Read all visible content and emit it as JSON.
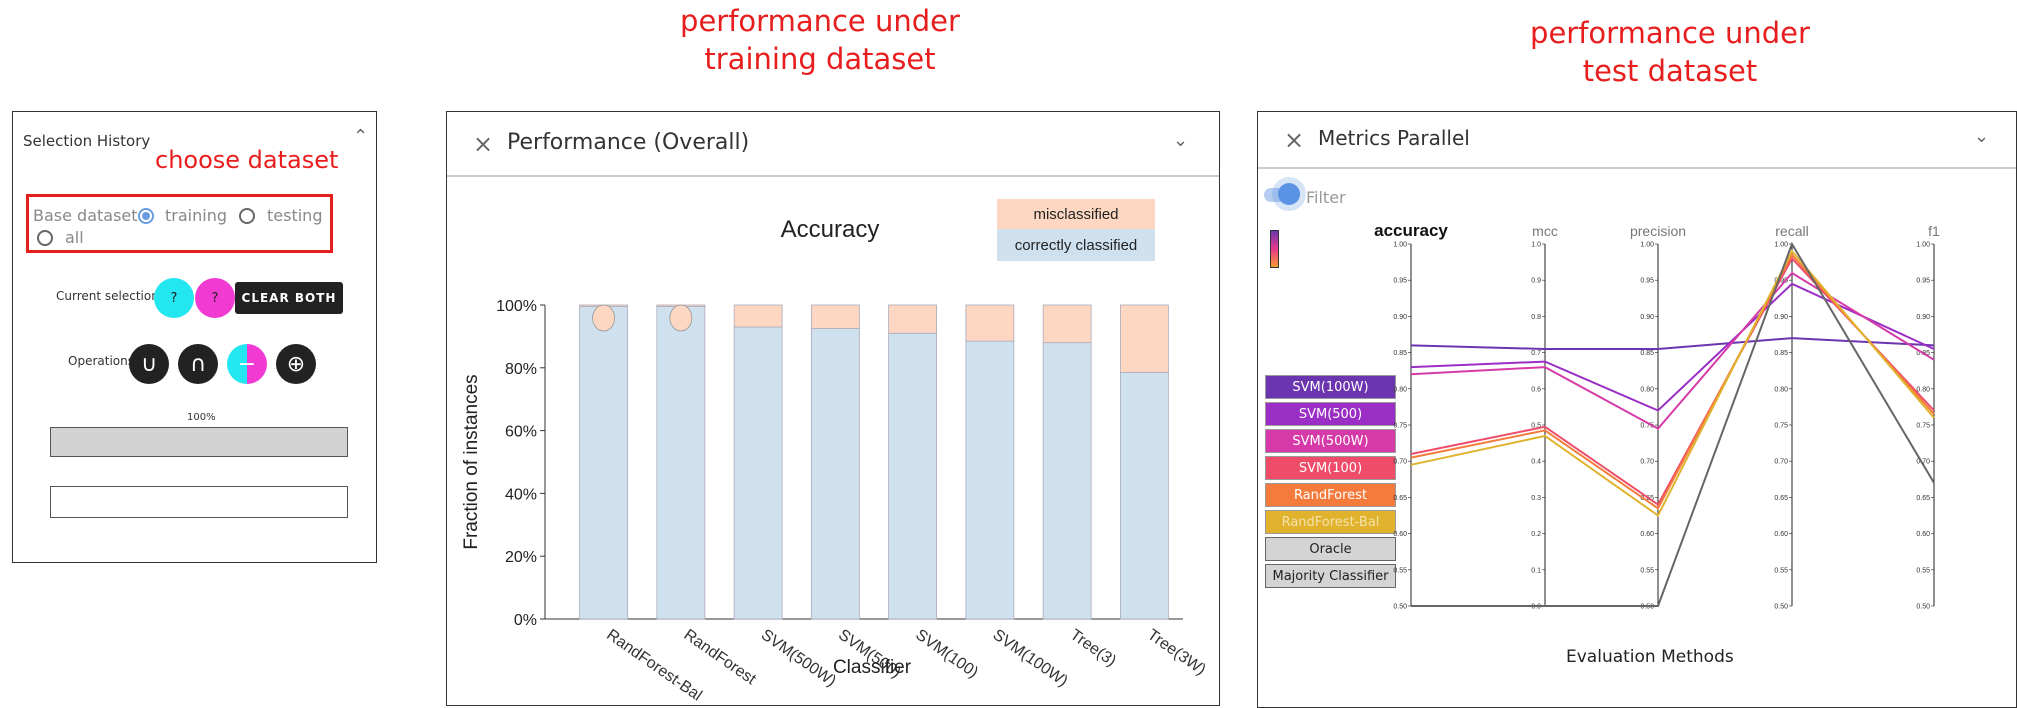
{
  "captions": {
    "training": "performance under\ntraining dataset",
    "test": "performance under\ntest dataset",
    "choose": "choose dataset"
  },
  "selection_history": {
    "title": "Selection History",
    "base_dataset_label": "Base dataset",
    "options": [
      "training",
      "testing",
      "all"
    ],
    "selected": "training",
    "current_selections_label": "Current selections",
    "sel_a": "?",
    "sel_b": "?",
    "clear_both": "CLEAR BOTH",
    "operations_label": "Operations",
    "operations": [
      "∪",
      "∩",
      "−",
      "⊕"
    ],
    "progress_label": "100%",
    "progress": 1.0
  },
  "performance": {
    "title": "Performance (Overall)",
    "close_icon": "×",
    "chevron_icon": "⌄",
    "chart_title": "Accuracy",
    "legend": [
      "misclassified",
      "correctly classified"
    ],
    "ylabel": "Fraction of instances",
    "xlabel": "Classifier",
    "yticks": [
      "0%",
      "20%",
      "40%",
      "60%",
      "80%",
      "100%"
    ],
    "colors": {
      "correct": "#cfe1ee",
      "mis": "#fdd7c2"
    }
  },
  "metrics": {
    "title": "Metrics Parallel",
    "close_icon": "×",
    "chevron_icon": "⌄",
    "filter_label": "Filter",
    "axes": [
      "accuracy",
      "mcc",
      "precision",
      "recall",
      "f1"
    ],
    "xlabel": "Evaluation Methods",
    "classifiers": [
      {
        "name": "SVM(100W)",
        "color": "#6c35b0"
      },
      {
        "name": "SVM(500)",
        "color": "#9b2ec4"
      },
      {
        "name": "SVM(500W)",
        "color": "#d63aa8"
      },
      {
        "name": "SVM(100)",
        "color": "#ef4c6a"
      },
      {
        "name": "RandForest",
        "color": "#f57b3c"
      },
      {
        "name": "RandForest-Bal",
        "color": "#e0b22e"
      },
      {
        "name": "Oracle",
        "color": "#d4d4d4"
      },
      {
        "name": "Majority Classifier",
        "color": "#d4d4d4"
      }
    ],
    "scales": {
      "accuracy": [
        "0.50",
        "0.55",
        "0.60",
        "0.65",
        "0.70",
        "0.75",
        "0.80",
        "0.85",
        "0.90",
        "0.95",
        "1.00"
      ],
      "mcc": [
        "0.0",
        "0.1",
        "0.2",
        "0.3",
        "0.4",
        "0.5",
        "0.6",
        "0.7",
        "0.8",
        "0.9",
        "1.0"
      ],
      "precision": [
        "0.50",
        "0.55",
        "0.60",
        "0.65",
        "0.70",
        "0.75",
        "0.80",
        "0.85",
        "0.90",
        "0.95",
        "1.00"
      ],
      "recall": [
        "0.50",
        "0.55",
        "0.60",
        "0.65",
        "0.70",
        "0.75",
        "0.80",
        "0.85",
        "0.90",
        "0.95",
        "1.00"
      ],
      "f1": [
        "0.50",
        "0.55",
        "0.60",
        "0.65",
        "0.70",
        "0.75",
        "0.80",
        "0.85",
        "0.90",
        "0.95",
        "1.00"
      ]
    }
  },
  "chart_data": [
    {
      "type": "bar",
      "title": "Accuracy",
      "xlabel": "Classifier",
      "ylabel": "Fraction of instances",
      "ylim": [
        0,
        1
      ],
      "categories": [
        "RandForest-Bal",
        "RandForest",
        "SVM(500W)",
        "SVM(500)",
        "SVM(100)",
        "SVM(100W)",
        "Tree(3)",
        "Tree(3W)"
      ],
      "series": [
        {
          "name": "correctly classified",
          "values": [
            0.995,
            0.995,
            0.93,
            0.925,
            0.91,
            0.885,
            0.88,
            0.785
          ]
        },
        {
          "name": "misclassified",
          "values": [
            0.005,
            0.005,
            0.07,
            0.075,
            0.09,
            0.115,
            0.12,
            0.215
          ]
        }
      ]
    },
    {
      "type": "line",
      "title": "",
      "xlabel": "Evaluation Methods",
      "ylabel": "",
      "x": [
        "accuracy",
        "mcc",
        "precision",
        "recall",
        "f1"
      ],
      "series": [
        {
          "name": "SVM(100W)",
          "values": [
            0.86,
            0.71,
            0.855,
            0.87,
            0.86
          ]
        },
        {
          "name": "SVM(500)",
          "values": [
            0.83,
            0.675,
            0.77,
            0.945,
            0.855
          ]
        },
        {
          "name": "SVM(500W)",
          "values": [
            0.82,
            0.66,
            0.745,
            0.96,
            0.84
          ]
        },
        {
          "name": "SVM(100)",
          "values": [
            0.71,
            0.495,
            0.64,
            0.98,
            0.77
          ]
        },
        {
          "name": "RandForest",
          "values": [
            0.705,
            0.485,
            0.635,
            0.985,
            0.765
          ]
        },
        {
          "name": "RandForest-Bal",
          "values": [
            0.695,
            0.47,
            0.625,
            0.99,
            0.76
          ]
        },
        {
          "name": "Majority Classifier",
          "values": [
            0.5,
            0.0,
            0.5,
            1.0,
            0.67
          ]
        }
      ]
    }
  ]
}
